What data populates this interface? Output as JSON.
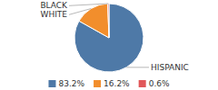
{
  "chart_data": {
    "type": "pie",
    "categories": [
      "HISPANIC",
      "WHITE",
      "BLACK"
    ],
    "values": [
      83.2,
      16.2,
      0.6
    ],
    "value_labels": [
      "83.2%",
      "16.2%",
      "0.6%"
    ],
    "legend": "bottom"
  }
}
